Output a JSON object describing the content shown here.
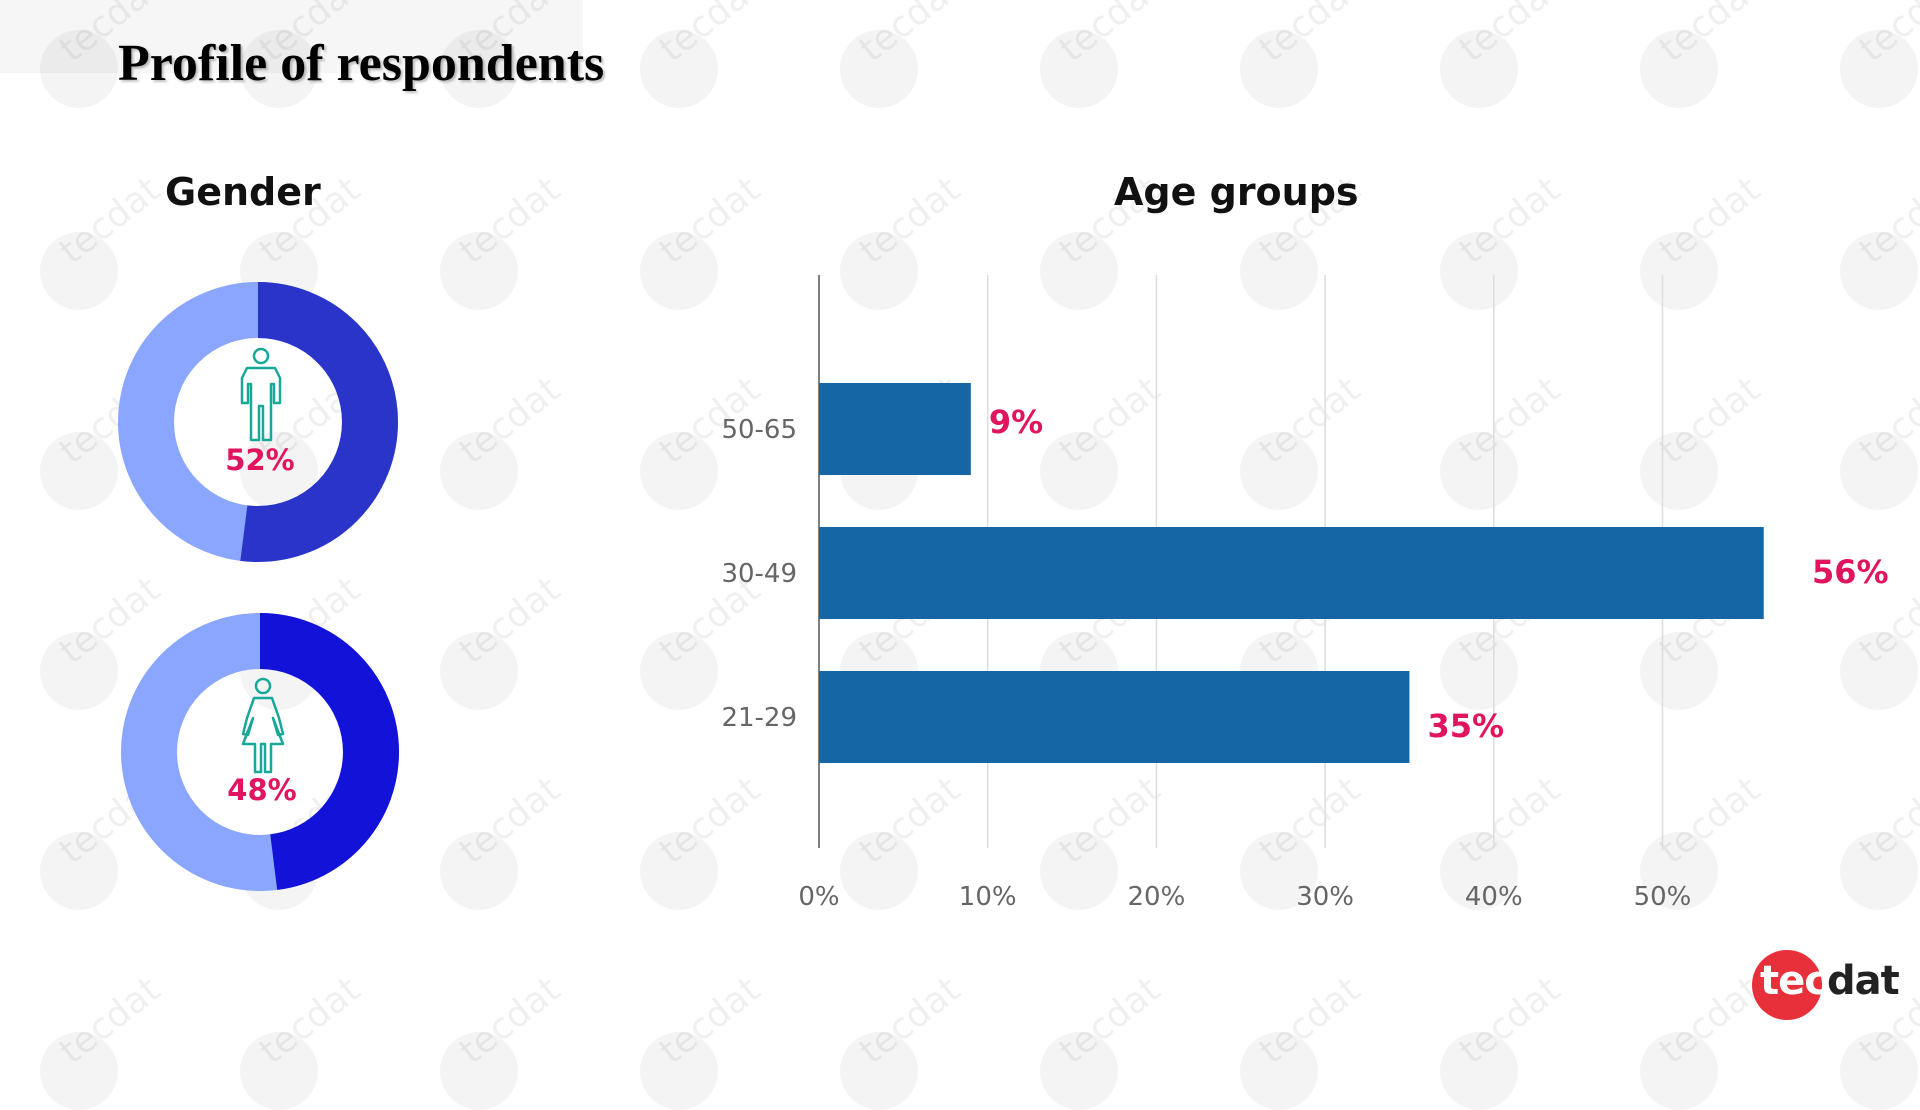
{
  "title": "Profile of respondents",
  "gender_title": "Gender",
  "age_title": "Age groups",
  "colors": {
    "donut_light": "#8aa6ff",
    "male_dark": "#2b34c8",
    "female_dark": "#1212d8",
    "icon": "#18a89a",
    "label_pink": "#e0145f",
    "bar": "#1467a4",
    "grid": "#dddddd",
    "axis": "#555555"
  },
  "chart_data": [
    {
      "type": "pie",
      "title": "Gender",
      "slices": [
        {
          "label": "52%",
          "value": 52,
          "icon": "male-icon"
        },
        {
          "label": "48%",
          "value": 48,
          "icon": "female-icon"
        }
      ]
    },
    {
      "type": "bar",
      "orientation": "horizontal",
      "title": "Age groups",
      "categories": [
        "50-65",
        "30-49",
        "21-29"
      ],
      "values": [
        9,
        56,
        35
      ],
      "value_labels": [
        "9%",
        "56%",
        "35%"
      ],
      "xlim": [
        0,
        56
      ],
      "xticks": [
        0,
        10,
        20,
        30,
        40,
        50
      ],
      "xtick_labels": [
        "0%",
        "10%",
        "20%",
        "30%",
        "40%",
        "50%"
      ],
      "grid": true
    }
  ],
  "logo": {
    "part1": "tec",
    "part2": "dat"
  }
}
